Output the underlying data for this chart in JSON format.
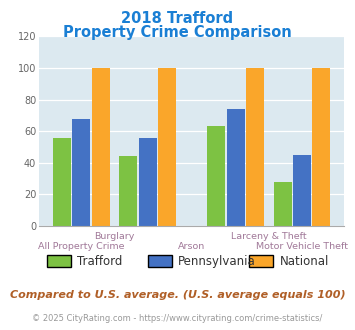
{
  "title_line1": "2018 Trafford",
  "title_line2": "Property Crime Comparison",
  "title_color": "#1a7fd4",
  "groups": [
    {
      "trafford": 56,
      "pennsylvania": 68,
      "national": 100
    },
    {
      "trafford": 44,
      "pennsylvania": 56,
      "national": 100
    },
    {
      "trafford": 63,
      "pennsylvania": 74,
      "national": 100
    },
    {
      "trafford": 28,
      "pennsylvania": 45,
      "national": 100
    }
  ],
  "series_labels": [
    "Trafford",
    "Pennsylvania",
    "National"
  ],
  "colors": [
    "#7dc243",
    "#4472c4",
    "#faa62a"
  ],
  "ylim": [
    0,
    120
  ],
  "yticks": [
    0,
    20,
    40,
    60,
    80,
    100,
    120
  ],
  "plot_bg": "#dce9f0",
  "xlabel_color": "#a07898",
  "xlabel_top": [
    "Burglary",
    "Larceny & Theft"
  ],
  "xlabel_top_xpos": [
    1,
    3
  ],
  "xlabel_bottom": [
    "All Property Crime",
    "Arson",
    "Motor Vehicle Theft"
  ],
  "xlabel_bottom_xpos": [
    0,
    2,
    4
  ],
  "footnote": "Compared to U.S. average. (U.S. average equals 100)",
  "footnote_color": "#b05f27",
  "copyright": "© 2025 CityRating.com - https://www.cityrating.com/crime-statistics/",
  "copyright_color": "#999999"
}
